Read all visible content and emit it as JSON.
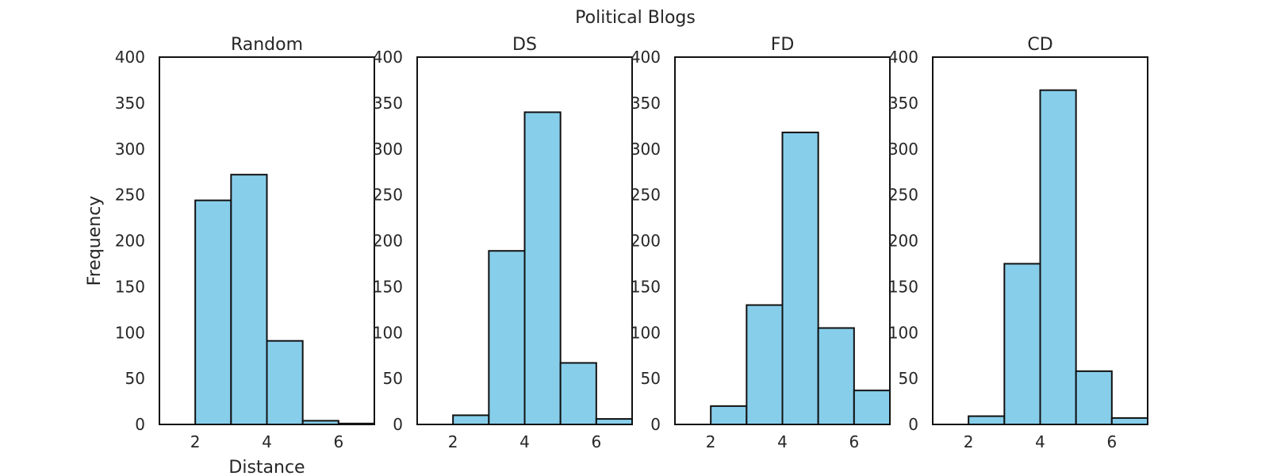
{
  "figure_title": "Political Blogs",
  "chart_data": [
    {
      "type": "bar",
      "title": "Random",
      "xlabel": "Distance",
      "ylabel": "Frequency",
      "xlim": [
        1,
        7
      ],
      "ylim": [
        0,
        400
      ],
      "xticks": [
        2,
        4,
        6
      ],
      "yticks": [
        0,
        50,
        100,
        150,
        200,
        250,
        300,
        350,
        400
      ],
      "bin_edges": [
        2,
        3,
        4,
        5,
        6,
        7
      ],
      "values": [
        244,
        272,
        91,
        4,
        1
      ]
    },
    {
      "type": "bar",
      "title": "DS",
      "xlabel": "",
      "ylabel": "",
      "xlim": [
        1,
        7
      ],
      "ylim": [
        0,
        400
      ],
      "xticks": [
        2,
        4,
        6
      ],
      "yticks": [
        0,
        50,
        100,
        150,
        200,
        250,
        300,
        350,
        400
      ],
      "bin_edges": [
        2,
        3,
        4,
        5,
        6,
        7
      ],
      "values": [
        10,
        189,
        340,
        67,
        6
      ]
    },
    {
      "type": "bar",
      "title": "FD",
      "xlabel": "",
      "ylabel": "",
      "xlim": [
        1,
        7
      ],
      "ylim": [
        0,
        400
      ],
      "xticks": [
        2,
        4,
        6
      ],
      "yticks": [
        0,
        50,
        100,
        150,
        200,
        250,
        300,
        350,
        400
      ],
      "bin_edges": [
        2,
        3,
        4,
        5,
        6,
        7
      ],
      "values": [
        20,
        130,
        318,
        105,
        37
      ]
    },
    {
      "type": "bar",
      "title": "CD",
      "xlabel": "",
      "ylabel": "",
      "xlim": [
        1,
        7
      ],
      "ylim": [
        0,
        400
      ],
      "xticks": [
        2,
        4,
        6
      ],
      "yticks": [
        0,
        50,
        100,
        150,
        200,
        250,
        300,
        350,
        400
      ],
      "bin_edges": [
        2,
        3,
        4,
        5,
        6,
        7
      ],
      "values": [
        9,
        175,
        364,
        58,
        7
      ]
    }
  ]
}
